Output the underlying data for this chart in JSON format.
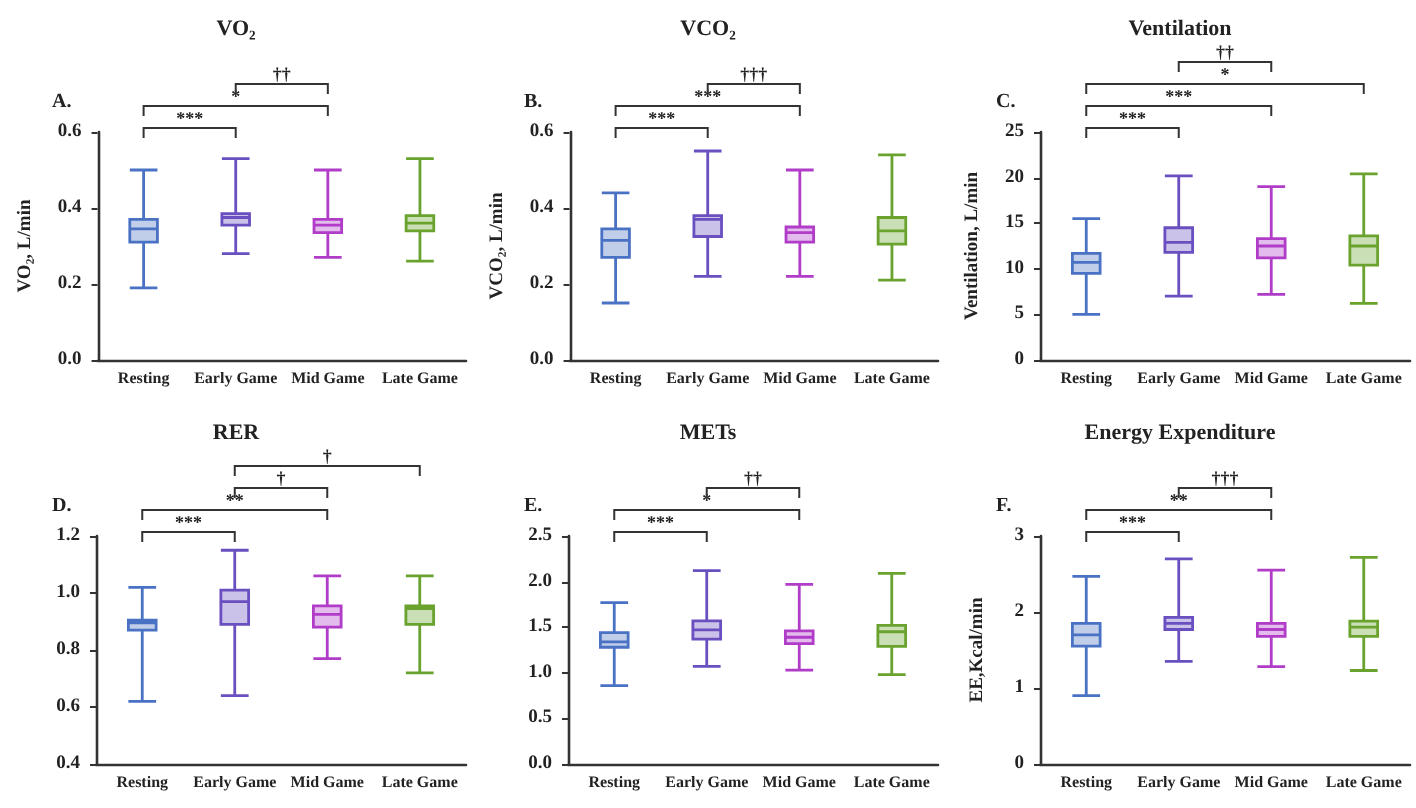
{
  "chart_data": [
    {
      "type": "box",
      "title": "VO₂",
      "ylabel": "VO₂, L/min",
      "categories": [
        "Resting",
        "Early Game",
        "Mid Game",
        "Late Game"
      ],
      "colors": [
        "#4a72c4",
        "#6a4fc0",
        "#b03cc8",
        "#6aa22e"
      ],
      "boxes": [
        {
          "low": 0.19,
          "q1": 0.31,
          "median": 0.345,
          "q3": 0.37,
          "high": 0.5
        },
        {
          "low": 0.28,
          "q1": 0.355,
          "median": 0.375,
          "q3": 0.385,
          "high": 0.53
        },
        {
          "low": 0.27,
          "q1": 0.335,
          "median": 0.355,
          "q3": 0.37,
          "high": 0.5
        },
        {
          "low": 0.26,
          "q1": 0.34,
          "median": 0.36,
          "q3": 0.38,
          "high": 0.53
        }
      ],
      "ylim": [
        0,
        0.6
      ],
      "yticks": [
        {
          "value": 0,
          "label": "0.0"
        },
        0.2,
        0.4,
        0.6
      ],
      "grid": false,
      "annotations": [
        "A.",
        "***",
        "*",
        "††"
      ]
    },
    {
      "type": "box",
      "title": "VCO₂",
      "ylabel": "VCO₂, L/min",
      "categories": [
        "Resting",
        "Early Game",
        "Mid Game",
        "Late Game"
      ],
      "colors": [
        "#4a72c4",
        "#6a4fc0",
        "#b03cc8",
        "#6aa22e"
      ],
      "boxes": [
        {
          "low": 0.15,
          "q1": 0.27,
          "median": 0.315,
          "q3": 0.345,
          "high": 0.44
        },
        {
          "low": 0.22,
          "q1": 0.325,
          "median": 0.37,
          "q3": 0.38,
          "high": 0.55
        },
        {
          "low": 0.22,
          "q1": 0.31,
          "median": 0.335,
          "q3": 0.35,
          "high": 0.5
        },
        {
          "low": 0.21,
          "q1": 0.305,
          "median": 0.34,
          "q3": 0.375,
          "high": 0.54
        }
      ],
      "ylim": [
        0,
        0.6
      ],
      "yticks": [
        {
          "value": 0,
          "label": "0.0"
        },
        0.2,
        0.4,
        0.6
      ],
      "grid": false,
      "annotations": [
        "B.",
        "***",
        "***",
        "†††"
      ]
    },
    {
      "type": "box",
      "title": "Ventilation",
      "ylabel": "Ventilation, L/min",
      "categories": [
        "Resting",
        "Early Game",
        "Mid Game",
        "Late Game"
      ],
      "colors": [
        "#4a72c4",
        "#6a4fc0",
        "#b03cc8",
        "#6aa22e"
      ],
      "boxes": [
        {
          "low": 5,
          "q1": 9.5,
          "median": 10.7,
          "q3": 11.7,
          "high": 15.5
        },
        {
          "low": 7,
          "q1": 11.8,
          "median": 12.9,
          "q3": 14.5,
          "high": 20.2
        },
        {
          "low": 7.2,
          "q1": 11.2,
          "median": 12.5,
          "q3": 13.3,
          "high": 19
        },
        {
          "low": 6.2,
          "q1": 10.4,
          "median": 12.5,
          "q3": 13.6,
          "high": 20.4
        }
      ],
      "ylim": [
        0,
        25
      ],
      "yticks": [
        0,
        5,
        10,
        15,
        20,
        25
      ],
      "grid": false,
      "annotations": [
        "C.",
        "***",
        "***",
        "*",
        "††"
      ]
    },
    {
      "type": "box",
      "title": "RER",
      "categories": [
        "Resting",
        "Early Game",
        "Mid Game",
        "Late Game"
      ],
      "colors": [
        "#4a72c4",
        "#6a4fc0",
        "#b03cc8",
        "#6aa22e"
      ],
      "boxes": [
        {
          "low": 0.62,
          "q1": 0.87,
          "median": 0.895,
          "q3": 0.905,
          "high": 1.02
        },
        {
          "low": 0.64,
          "q1": 0.89,
          "median": 0.97,
          "q3": 1.01,
          "high": 1.15
        },
        {
          "low": 0.77,
          "q1": 0.88,
          "median": 0.925,
          "q3": 0.955,
          "high": 1.06
        },
        {
          "low": 0.72,
          "q1": 0.89,
          "median": 0.945,
          "q3": 0.955,
          "high": 1.06
        }
      ],
      "ylim": [
        0.4,
        1.2
      ],
      "yticks": [
        0.4,
        0.6,
        0.8,
        {
          "value": 1,
          "label": "1.0"
        },
        1.2
      ],
      "grid": false,
      "annotations": [
        "D.",
        "***",
        "**",
        "†",
        "†"
      ]
    },
    {
      "type": "box",
      "title": "METs",
      "categories": [
        "Resting",
        "Early Game",
        "Mid Game",
        "Late Game"
      ],
      "colors": [
        "#4a72c4",
        "#6a4fc0",
        "#b03cc8",
        "#6aa22e"
      ],
      "boxes": [
        {
          "low": 0.86,
          "q1": 1.28,
          "median": 1.34,
          "q3": 1.44,
          "high": 1.77
        },
        {
          "low": 1.07,
          "q1": 1.37,
          "median": 1.47,
          "q3": 1.57,
          "high": 2.12
        },
        {
          "low": 1.03,
          "q1": 1.32,
          "median": 1.39,
          "q3": 1.46,
          "high": 1.97
        },
        {
          "low": 0.98,
          "q1": 1.29,
          "median": 1.45,
          "q3": 1.52,
          "high": 2.09
        }
      ],
      "ylim": [
        0,
        2.5
      ],
      "yticks": [
        {
          "value": 0,
          "label": "0.0"
        },
        0.5,
        {
          "value": 1,
          "label": "1.0"
        },
        1.5,
        {
          "value": 2,
          "label": "2.0"
        },
        2.5
      ],
      "grid": false,
      "annotations": [
        "E.",
        "***",
        "*",
        "††"
      ]
    },
    {
      "type": "box",
      "title": "Energy Expenditure",
      "ylabel": "EE,Kcal/min",
      "categories": [
        "Resting",
        "Early Game",
        "Mid Game",
        "Late Game"
      ],
      "colors": [
        "#4a72c4",
        "#6a4fc0",
        "#b03cc8",
        "#6aa22e"
      ],
      "boxes": [
        {
          "low": 0.9,
          "q1": 1.55,
          "median": 1.7,
          "q3": 1.85,
          "high": 2.47
        },
        {
          "low": 1.35,
          "q1": 1.77,
          "median": 1.85,
          "q3": 1.93,
          "high": 2.7
        },
        {
          "low": 1.28,
          "q1": 1.68,
          "median": 1.77,
          "q3": 1.85,
          "high": 2.55
        },
        {
          "low": 1.23,
          "q1": 1.68,
          "median": 1.8,
          "q3": 1.88,
          "high": 2.72
        }
      ],
      "ylim": [
        0,
        3
      ],
      "yticks": [
        0,
        1,
        2,
        3
      ],
      "grid": false,
      "annotations": [
        "F.",
        "***",
        "**",
        "†††"
      ]
    }
  ]
}
